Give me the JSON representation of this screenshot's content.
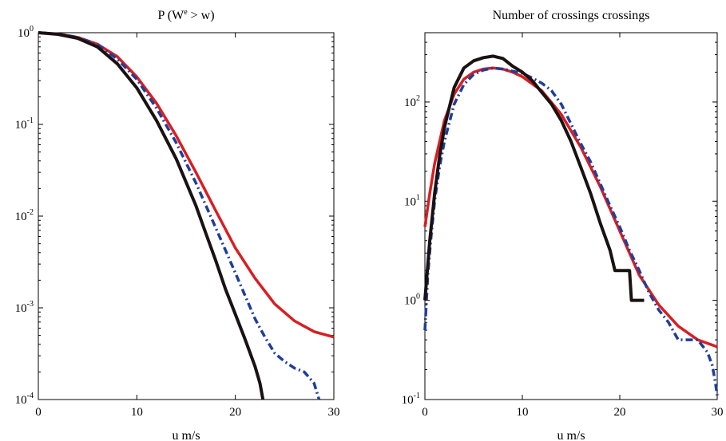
{
  "chart_data": [
    {
      "type": "line",
      "title_main": "P (W",
      "title_sup": "e",
      "title_rest": " > w)",
      "xlabel": "u m/s",
      "ylabel": "",
      "xlim": [
        0,
        30
      ],
      "ylim": [
        0.0001,
        1
      ],
      "yscale": "log",
      "xticks": [
        0,
        10,
        20,
        30
      ],
      "yticks": [
        {
          "base": "10",
          "exp": "0"
        },
        {
          "base": "10",
          "exp": "-1"
        },
        {
          "base": "10",
          "exp": "-2"
        },
        {
          "base": "10",
          "exp": "-3"
        },
        {
          "base": "10",
          "exp": "-4"
        }
      ],
      "grid": false,
      "series": [
        {
          "color": "#d81e22",
          "style": "solid",
          "x": [
            0,
            2,
            4,
            6,
            8,
            10,
            12,
            14,
            16,
            18,
            20,
            22,
            24,
            26,
            28,
            30
          ],
          "y": [
            1,
            0.97,
            0.89,
            0.75,
            0.55,
            0.33,
            0.17,
            0.075,
            0.03,
            0.0115,
            0.0045,
            0.0021,
            0.0011,
            0.00072,
            0.00055,
            0.00048
          ]
        },
        {
          "color": "#1f3e9a",
          "style": "dashdot",
          "x": [
            0,
            2,
            4,
            6,
            8,
            10,
            12,
            14,
            16,
            18,
            20,
            22,
            23,
            24,
            25,
            26,
            27,
            28,
            28.5
          ],
          "y": [
            1,
            0.97,
            0.89,
            0.74,
            0.52,
            0.31,
            0.15,
            0.063,
            0.023,
            0.0075,
            0.0024,
            0.00076,
            0.00048,
            0.00032,
            0.00026,
            0.00022,
            0.0002,
            0.00015,
            0.0001
          ]
        },
        {
          "color": "#1a1212",
          "style": "solid",
          "x": [
            0,
            2,
            4,
            6,
            8,
            10,
            12,
            14,
            16,
            17,
            18,
            19,
            20,
            21,
            22,
            22.5,
            22.8
          ],
          "y": [
            1,
            0.96,
            0.87,
            0.7,
            0.46,
            0.25,
            0.11,
            0.042,
            0.013,
            0.0065,
            0.0033,
            0.0016,
            0.00085,
            0.00045,
            0.00023,
            0.00015,
            0.0001
          ]
        }
      ]
    },
    {
      "type": "line",
      "title": "Number of crossings crossings",
      "xlabel": "u m/s",
      "ylabel": "",
      "xlim": [
        0,
        30
      ],
      "ylim": [
        0.1,
        500
      ],
      "yscale": "log",
      "xticks": [
        0,
        10,
        20,
        30
      ],
      "yticks": [
        {
          "base": "10",
          "exp": "2"
        },
        {
          "base": "10",
          "exp": "1"
        },
        {
          "base": "10",
          "exp": "0"
        },
        {
          "base": "10",
          "exp": "-1"
        }
      ],
      "grid": false,
      "series": [
        {
          "color": "#d81e22",
          "style": "solid",
          "x": [
            0,
            0.5,
            1,
            2,
            3,
            4,
            5,
            6,
            7,
            8,
            9,
            10,
            12,
            14,
            16,
            18,
            20,
            22,
            24,
            26,
            28,
            30
          ],
          "y": [
            5.5,
            12,
            24,
            65,
            120,
            170,
            200,
            215,
            220,
            215,
            200,
            180,
            130,
            75,
            35,
            14,
            5,
            1.8,
            0.9,
            0.55,
            0.4,
            0.34
          ]
        },
        {
          "color": "#1f3e9a",
          "style": "dashdot",
          "x": [
            0,
            0.3,
            0.6,
            1,
            1.5,
            2,
            3,
            4,
            5,
            6,
            7,
            8,
            9,
            10,
            11,
            12,
            13,
            14,
            15,
            16,
            17,
            18,
            19,
            20,
            21,
            22,
            23,
            24,
            25,
            26,
            27,
            28,
            29,
            29.5,
            29.8,
            30
          ],
          "y": [
            0.5,
            1.8,
            4,
            10,
            22,
            40,
            95,
            150,
            190,
            210,
            220,
            215,
            205,
            195,
            175,
            155,
            130,
            95,
            60,
            38,
            25,
            15,
            9,
            5.5,
            3.2,
            2,
            1.2,
            0.8,
            0.6,
            0.4,
            0.4,
            0.4,
            0.3,
            0.22,
            0.15,
            0.11
          ]
        },
        {
          "color": "#1a1212",
          "style": "solid",
          "x": [
            0,
            0.5,
            1,
            1.5,
            2,
            3,
            4,
            5,
            6,
            7,
            8,
            9,
            10,
            11,
            12,
            13,
            14,
            15,
            16,
            17,
            18,
            19,
            19.5,
            20,
            21,
            21.2,
            22.5
          ],
          "y": [
            1,
            4,
            12,
            28,
            55,
            140,
            220,
            260,
            280,
            290,
            275,
            230,
            200,
            165,
            125,
            95,
            65,
            40,
            22,
            12,
            6,
            3.2,
            2,
            2,
            2,
            1,
            1
          ]
        }
      ]
    }
  ]
}
